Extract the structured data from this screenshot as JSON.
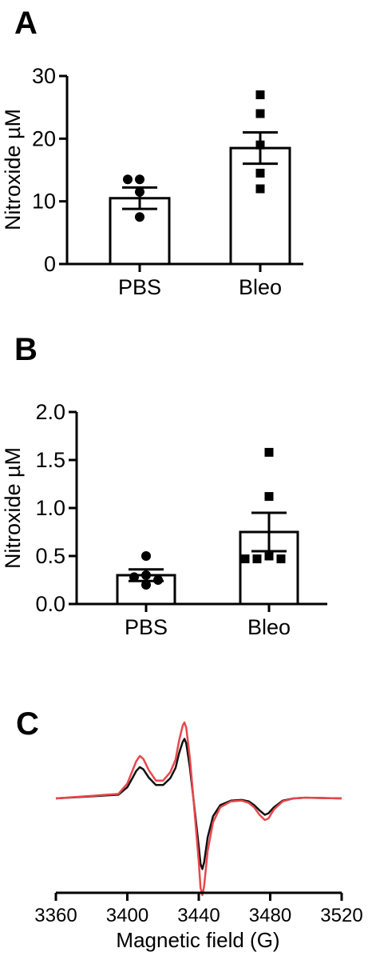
{
  "panels": {
    "a": {
      "letter": "A"
    },
    "b": {
      "letter": "B"
    },
    "c": {
      "letter": "C"
    }
  },
  "chart_data": [
    {
      "type": "bar",
      "panel": "A",
      "ylabel": "Nitroxide µM",
      "ylim": [
        0,
        30
      ],
      "yticks": [
        "0",
        "10",
        "20",
        "30"
      ],
      "ytick_values": [
        0,
        10,
        20,
        30
      ],
      "categories": [
        "PBS",
        "Bleo"
      ],
      "values": [
        10.5,
        18.5
      ],
      "sem": [
        1.7,
        2.5
      ],
      "points": [
        {
          "category": "PBS",
          "marker": "circle",
          "values": [
            13.5,
            13.5,
            11.5,
            7.5
          ]
        },
        {
          "category": "Bleo",
          "marker": "square",
          "values": [
            27,
            24,
            19,
            14.5,
            12
          ]
        }
      ]
    },
    {
      "type": "bar",
      "panel": "B",
      "ylabel": "Nitroxide µM",
      "ylim": [
        0,
        2.0
      ],
      "yticks": [
        "0.0",
        "0.5",
        "1.0",
        "1.5",
        "2.0"
      ],
      "ytick_values": [
        0,
        0.5,
        1.0,
        1.5,
        2.0
      ],
      "categories": [
        "PBS",
        "Bleo"
      ],
      "values": [
        0.3,
        0.75
      ],
      "sem": [
        0.06,
        0.2
      ],
      "points": [
        {
          "category": "PBS",
          "marker": "circle",
          "values": [
            0.5,
            0.3,
            0.28,
            0.25,
            0.2
          ]
        },
        {
          "category": "Bleo",
          "marker": "square",
          "values": [
            1.58,
            1.12,
            0.5,
            0.47,
            0.47,
            0.47
          ]
        }
      ]
    },
    {
      "type": "line",
      "panel": "C",
      "xlabel": "Magnetic field (G)",
      "xlim": [
        3360,
        3520
      ],
      "xticks": [
        "3360",
        "3400",
        "3440",
        "3480",
        "3520"
      ],
      "xtick_values": [
        3360,
        3400,
        3440,
        3480,
        3520
      ],
      "y_axis_shown": false,
      "ylim": [
        -1.3,
        1.0
      ],
      "series": [
        {
          "color": "#e8474c",
          "x": [
            3360,
            3395,
            3400,
            3403,
            3405,
            3407,
            3409,
            3412,
            3416,
            3420,
            3424,
            3427,
            3429,
            3431,
            3432,
            3433,
            3435,
            3437,
            3440,
            3441,
            3442,
            3443,
            3445,
            3448,
            3452,
            3458,
            3464,
            3468,
            3471,
            3474,
            3477,
            3479,
            3482,
            3487,
            3493,
            3500,
            3520
          ],
          "y": [
            0,
            0.06,
            0.2,
            0.38,
            0.5,
            0.57,
            0.53,
            0.38,
            0.24,
            0.24,
            0.35,
            0.52,
            0.78,
            0.98,
            1.02,
            0.95,
            0.55,
            0.0,
            -0.85,
            -1.2,
            -1.3,
            -1.18,
            -0.7,
            -0.32,
            -0.12,
            -0.04,
            -0.03,
            -0.06,
            -0.12,
            -0.22,
            -0.29,
            -0.27,
            -0.15,
            -0.04,
            0.0,
            0.01,
            0.0
          ]
        },
        {
          "color": "#111111",
          "x": [
            3360,
            3395,
            3400,
            3403,
            3405,
            3407,
            3409,
            3412,
            3416,
            3420,
            3424,
            3427,
            3429,
            3431,
            3432,
            3433,
            3435,
            3437,
            3440,
            3441,
            3442,
            3443,
            3445,
            3448,
            3452,
            3458,
            3464,
            3468,
            3471,
            3474,
            3477,
            3479,
            3482,
            3487,
            3493,
            3500,
            3520
          ],
          "y": [
            0,
            0.05,
            0.15,
            0.28,
            0.37,
            0.42,
            0.39,
            0.28,
            0.18,
            0.18,
            0.27,
            0.41,
            0.61,
            0.76,
            0.8,
            0.74,
            0.42,
            0.0,
            -0.65,
            -0.88,
            -0.95,
            -0.86,
            -0.52,
            -0.24,
            -0.09,
            -0.03,
            -0.02,
            -0.04,
            -0.09,
            -0.16,
            -0.22,
            -0.2,
            -0.12,
            -0.03,
            0.0,
            0.01,
            0.0
          ]
        }
      ]
    }
  ]
}
